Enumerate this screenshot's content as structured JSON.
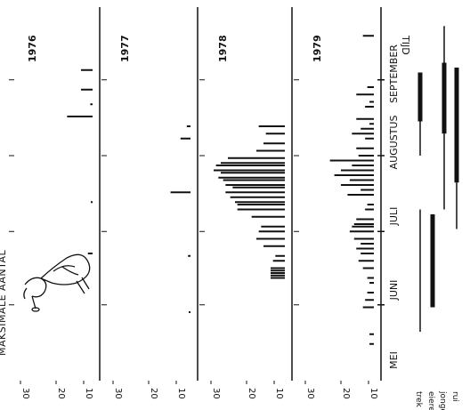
{
  "chart_data": {
    "type": "bar",
    "orientation": "rotated 90 degrees clockwise",
    "ylabel": "MAKSIMALE AANTAL",
    "xlabel": "TIJD",
    "y_ticks": [
      "30",
      "20",
      "10"
    ],
    "ylim": [
      0,
      30
    ],
    "months": [
      "MEI",
      "JUNI",
      "JULI",
      "AUGUSTUS",
      "SEPTEMBER"
    ],
    "panels": [
      {
        "year": "1976",
        "bars": [
          {
            "day": 52,
            "value": 2
          },
          {
            "day": 73,
            "value": 0.5
          },
          {
            "day": 108,
            "value": 11
          },
          {
            "day": 113,
            "value": 1
          },
          {
            "day": 119,
            "value": 5
          },
          {
            "day": 127,
            "value": 5
          }
        ]
      },
      {
        "year": "1977",
        "bars": [
          {
            "day": 77,
            "value": 8
          },
          {
            "day": 99,
            "value": 4
          },
          {
            "day": 104,
            "value": 1.5
          },
          {
            "day": 51,
            "value": 1
          },
          {
            "day": 28,
            "value": 0.5
          }
        ]
      },
      {
        "year": "1978",
        "bars": [
          {
            "day": 42,
            "value": 6
          },
          {
            "day": 43,
            "value": 6
          },
          {
            "day": 44,
            "value": 6
          },
          {
            "day": 45,
            "value": 6
          },
          {
            "day": 46,
            "value": 6
          },
          {
            "day": 49,
            "value": 5
          },
          {
            "day": 51,
            "value": 4
          },
          {
            "day": 55,
            "value": 9
          },
          {
            "day": 58,
            "value": 12
          },
          {
            "day": 61,
            "value": 11
          },
          {
            "day": 63,
            "value": 10
          },
          {
            "day": 67,
            "value": 14
          },
          {
            "day": 70,
            "value": 20
          },
          {
            "day": 72,
            "value": 20
          },
          {
            "day": 73,
            "value": 21
          },
          {
            "day": 75,
            "value": 23
          },
          {
            "day": 77,
            "value": 25
          },
          {
            "day": 79,
            "value": 22
          },
          {
            "day": 80,
            "value": 25
          },
          {
            "day": 82,
            "value": 26
          },
          {
            "day": 83,
            "value": 28
          },
          {
            "day": 85,
            "value": 27
          },
          {
            "day": 86,
            "value": 30
          },
          {
            "day": 88,
            "value": 29
          },
          {
            "day": 89,
            "value": 27
          },
          {
            "day": 91,
            "value": 24
          },
          {
            "day": 94,
            "value": 12
          },
          {
            "day": 97,
            "value": 9
          },
          {
            "day": 101,
            "value": 8
          },
          {
            "day": 104,
            "value": 11
          }
        ]
      },
      {
        "year": "1979",
        "bars": [
          {
            "day": 15,
            "value": 2
          },
          {
            "day": 19,
            "value": 2
          },
          {
            "day": 30,
            "value": 5
          },
          {
            "day": 33,
            "value": 4
          },
          {
            "day": 36,
            "value": 3
          },
          {
            "day": 40,
            "value": 2
          },
          {
            "day": 42,
            "value": 3
          },
          {
            "day": 46,
            "value": 5
          },
          {
            "day": 49,
            "value": 7
          },
          {
            "day": 52,
            "value": 6
          },
          {
            "day": 54,
            "value": 8
          },
          {
            "day": 56,
            "value": 6
          },
          {
            "day": 58,
            "value": 9
          },
          {
            "day": 61,
            "value": 11
          },
          {
            "day": 63,
            "value": 10
          },
          {
            "day": 64,
            "value": 9
          },
          {
            "day": 66,
            "value": 8
          },
          {
            "day": 70,
            "value": 4
          },
          {
            "day": 72,
            "value": 3
          },
          {
            "day": 76,
            "value": 12
          },
          {
            "day": 78,
            "value": 6
          },
          {
            "day": 80,
            "value": 15
          },
          {
            "day": 82,
            "value": 11
          },
          {
            "day": 84,
            "value": 18
          },
          {
            "day": 86,
            "value": 15
          },
          {
            "day": 88,
            "value": 10
          },
          {
            "day": 90,
            "value": 20
          },
          {
            "day": 92,
            "value": 7
          },
          {
            "day": 95,
            "value": 8
          },
          {
            "day": 99,
            "value": 4
          },
          {
            "day": 101,
            "value": 10
          },
          {
            "day": 103,
            "value": 6
          },
          {
            "day": 105,
            "value": 2
          },
          {
            "day": 107,
            "value": 8
          },
          {
            "day": 112,
            "value": 4
          },
          {
            "day": 114,
            "value": 2
          },
          {
            "day": 117,
            "value": 8
          },
          {
            "day": 120,
            "value": 3
          },
          {
            "day": 141,
            "value": 5
          }
        ]
      }
    ],
    "phenology": [
      {
        "label": "trek",
        "segments": [
          {
            "start": 20,
            "end": 70,
            "thick": false
          },
          {
            "start": 92,
            "end": 106,
            "thick": false
          },
          {
            "start": 106,
            "end": 126,
            "thick": true
          }
        ]
      },
      {
        "label": "eieren",
        "segments": [
          {
            "start": 30,
            "end": 68,
            "thick": true
          }
        ]
      },
      {
        "label": "jongen",
        "segments": [
          {
            "start": 70,
            "end": 101,
            "thick": false
          },
          {
            "start": 101,
            "end": 130,
            "thick": true
          },
          {
            "start": 130,
            "end": 145,
            "thick": false
          }
        ]
      },
      {
        "label": "rui",
        "segments": [
          {
            "start": 62,
            "end": 81,
            "thick": false
          },
          {
            "start": 81,
            "end": 128,
            "thick": true
          }
        ]
      }
    ]
  }
}
